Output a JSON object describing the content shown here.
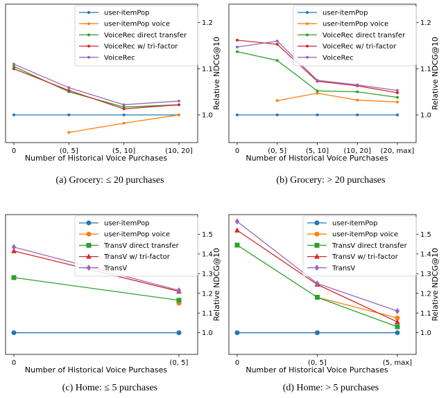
{
  "chart_data": [
    {
      "type": "line",
      "categories": [
        "0",
        "(0, 5]",
        "(5, 10]",
        "(10, 20]"
      ],
      "xlabel": "Number of Historical Voice Purchases",
      "ylabel": "Relative NDCG@10",
      "ylim": [
        0.94,
        1.24
      ],
      "yticks": [
        "1.0",
        "1.1",
        "1.2"
      ],
      "yticks_values": [
        1.0,
        1.1,
        1.2
      ],
      "legend_position": "top-right",
      "marker": "dot",
      "caption": "(a) Grocery: ≤ 20 purchases",
      "series": [
        {
          "name": "user-itemPop",
          "color": "#1f77b4",
          "values": [
            1.0,
            1.0,
            1.0,
            1.0
          ]
        },
        {
          "name": "user-itemPop voice",
          "color": "#ff7f0e",
          "values": [
            null,
            0.962,
            0.982,
            1.0
          ]
        },
        {
          "name": "VoiceRec direct transfer",
          "color": "#2ca02c",
          "values": [
            1.105,
            1.05,
            1.017,
            1.022
          ]
        },
        {
          "name": "VoiceRec w/ tri-factor",
          "color": "#d62728",
          "values": [
            1.1,
            1.053,
            1.013,
            1.022
          ]
        },
        {
          "name": "VoiceRec",
          "color": "#9467bd",
          "values": [
            1.11,
            1.059,
            1.022,
            1.03
          ]
        }
      ]
    },
    {
      "type": "line",
      "categories": [
        "0",
        "(0, 5]",
        "(5, 10]",
        "(10, 20]",
        "(20, max]"
      ],
      "xlabel": "Number of Historical Voice Purchases",
      "ylabel": "Relative NDCG@10",
      "ylim": [
        0.94,
        1.24
      ],
      "yticks": [
        "1.0",
        "1.1",
        "1.2"
      ],
      "yticks_values": [
        1.0,
        1.1,
        1.2
      ],
      "legend_position": "top-right",
      "marker": "dot",
      "caption": "(b) Grocery: > 20 purchases",
      "series": [
        {
          "name": "user-itemPop",
          "color": "#1f77b4",
          "values": [
            1.0,
            1.0,
            1.0,
            1.0,
            1.0
          ]
        },
        {
          "name": "user-itemPop voice",
          "color": "#ff7f0e",
          "values": [
            null,
            1.031,
            1.047,
            1.032,
            1.028
          ]
        },
        {
          "name": "VoiceRec direct transfer",
          "color": "#2ca02c",
          "values": [
            1.137,
            1.118,
            1.052,
            1.05,
            1.038
          ]
        },
        {
          "name": "VoiceRec w/ tri-factor",
          "color": "#d62728",
          "values": [
            1.162,
            1.153,
            1.073,
            1.063,
            1.048
          ]
        },
        {
          "name": "VoiceRec",
          "color": "#9467bd",
          "values": [
            1.147,
            1.16,
            1.075,
            1.065,
            1.053
          ]
        }
      ]
    },
    {
      "type": "line",
      "categories": [
        "0",
        "(0, 5]"
      ],
      "xlabel": "Number of Historical Voice Purchases",
      "ylabel": "Relative NDCG@10",
      "ylim": [
        0.89,
        1.6
      ],
      "yticks": [
        "1.0",
        "1.1",
        "1.2",
        "1.3",
        "1.4",
        "1.5"
      ],
      "yticks_values": [
        1.0,
        1.1,
        1.2,
        1.3,
        1.4,
        1.5
      ],
      "legend_position": "top-right",
      "marker": "shapes",
      "caption": "(c) Home: ≤ 5 purchases",
      "series": [
        {
          "name": "user-itemPop",
          "color": "#1f77b4",
          "marker": "circle",
          "values": [
            1.0,
            1.0
          ]
        },
        {
          "name": "user-itemPop voice",
          "color": "#ff7f0e",
          "marker": "circle",
          "values": [
            null,
            1.15
          ]
        },
        {
          "name": "TransV direct transfer",
          "color": "#2ca02c",
          "marker": "square",
          "values": [
            1.28,
            1.165
          ]
        },
        {
          "name": "TransV w/ tri-factor",
          "color": "#d62728",
          "marker": "triangle",
          "values": [
            1.415,
            1.21
          ]
        },
        {
          "name": "TransV",
          "color": "#9467bd",
          "marker": "diamond",
          "values": [
            1.435,
            1.215
          ]
        }
      ]
    },
    {
      "type": "line",
      "categories": [
        "0",
        "(0, 5]",
        "(5, max]"
      ],
      "xlabel": "Number of Historical Voice Purchases",
      "ylabel": "Relative NDCG@10",
      "ylim": [
        0.89,
        1.6
      ],
      "yticks": [
        "1.0",
        "1.1",
        "1.2",
        "1.3",
        "1.4",
        "1.5"
      ],
      "yticks_values": [
        1.0,
        1.1,
        1.2,
        1.3,
        1.4,
        1.5
      ],
      "legend_position": "top-right",
      "marker": "shapes",
      "caption": "(d) Home: > 5 purchases",
      "series": [
        {
          "name": "user-itemPop",
          "color": "#1f77b4",
          "marker": "circle",
          "values": [
            1.0,
            1.0,
            1.0
          ]
        },
        {
          "name": "user-itemPop voice",
          "color": "#ff7f0e",
          "marker": "circle",
          "values": [
            null,
            1.18,
            1.075
          ]
        },
        {
          "name": "TransV direct transfer",
          "color": "#2ca02c",
          "marker": "square",
          "values": [
            1.445,
            1.18,
            1.03
          ]
        },
        {
          "name": "TransV w/ tri-factor",
          "color": "#d62728",
          "marker": "triangle",
          "values": [
            1.52,
            1.245,
            1.055
          ]
        },
        {
          "name": "TransV",
          "color": "#9467bd",
          "marker": "diamond",
          "values": [
            1.565,
            1.25,
            1.11
          ]
        }
      ]
    }
  ]
}
